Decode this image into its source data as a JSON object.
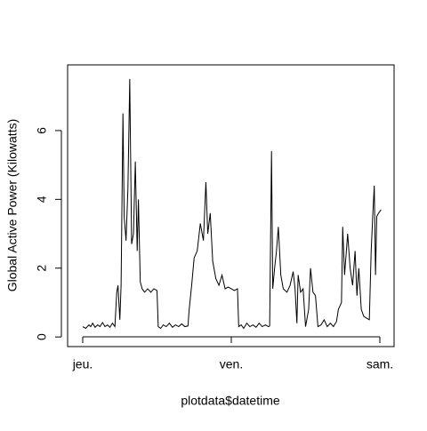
{
  "chart_data": {
    "type": "line",
    "x_label": "plotdata$datetime",
    "y_label": "Global Active Power (Kilowatts)",
    "xlim": [
      -2.44,
      50.3
    ],
    "ylim": [
      -0.28,
      7.91
    ],
    "xticks": [
      {
        "value": 0,
        "label": "jeu."
      },
      {
        "value": 24,
        "label": "ven."
      },
      {
        "value": 48,
        "label": "sam."
      }
    ],
    "yticks": [
      0,
      2,
      4,
      6
    ],
    "color": "#000000",
    "x": [
      0,
      0.5,
      1,
      1.3,
      1.6,
      2,
      2.4,
      2.8,
      3.2,
      3.6,
      4,
      4.4,
      4.8,
      5.2,
      5.5,
      5.7,
      6,
      6.2,
      6.5,
      6.7,
      7,
      7.3,
      7.6,
      7.9,
      8.2,
      8.5,
      8.8,
      9,
      9.3,
      9.6,
      10,
      10.5,
      11,
      11.5,
      12,
      12.2,
      12.6,
      13,
      13.5,
      14,
      14.5,
      15,
      15.5,
      16,
      16.5,
      17,
      17.2,
      17.6,
      18,
      18.5,
      19,
      19.5,
      19.9,
      20.2,
      20.6,
      21,
      21.5,
      22,
      22.5,
      23,
      23.5,
      24,
      24.5,
      25,
      25.2,
      25.6,
      26,
      26.5,
      27,
      27.5,
      28,
      28.5,
      29,
      29.5,
      30,
      30.2,
      30.5,
      30.7,
      31,
      31.3,
      31.6,
      32,
      32.4,
      33,
      33.5,
      34,
      34.3,
      34.6,
      34.8,
      35.2,
      35.6,
      36,
      36.5,
      36.8,
      37.2,
      37.6,
      38,
      38.5,
      39,
      39.5,
      40,
      40.5,
      41,
      41.3,
      41.8,
      42,
      42.3,
      42.8,
      43.2,
      43.6,
      44,
      44.3,
      44.6,
      45,
      45.4,
      45.8,
      46.3,
      46.6,
      46.9,
      47.1,
      47.3,
      47.5,
      47.8,
      48.2
    ],
    "values": [
      0.3,
      0.25,
      0.35,
      0.3,
      0.4,
      0.28,
      0.35,
      0.3,
      0.42,
      0.3,
      0.35,
      0.28,
      0.4,
      0.3,
      1.3,
      1.5,
      0.5,
      1.5,
      6.5,
      3.5,
      2.8,
      4.3,
      7.5,
      2.7,
      3.0,
      5.1,
      2.5,
      4.0,
      1.6,
      1.4,
      1.3,
      1.4,
      1.3,
      1.4,
      1.35,
      0.3,
      0.25,
      0.35,
      0.3,
      0.4,
      0.28,
      0.35,
      0.3,
      0.38,
      0.3,
      0.32,
      0.8,
      1.5,
      2.3,
      2.5,
      3.3,
      2.8,
      4.5,
      3.0,
      3.6,
      2.2,
      1.7,
      1.5,
      1.8,
      1.4,
      1.45,
      1.4,
      1.35,
      1.4,
      0.3,
      0.35,
      0.25,
      0.4,
      0.3,
      0.35,
      0.28,
      0.4,
      0.3,
      0.35,
      0.3,
      0.32,
      5.4,
      1.4,
      2.0,
      2.5,
      3.2,
      1.8,
      1.4,
      1.3,
      1.5,
      1.9,
      1.4,
      0.4,
      1.8,
      1.3,
      1.4,
      0.3,
      0.8,
      2.0,
      1.3,
      1.2,
      0.3,
      0.35,
      0.5,
      0.3,
      0.4,
      0.3,
      0.45,
      0.8,
      1.0,
      3.2,
      1.8,
      3.0,
      2.0,
      1.5,
      2.5,
      1.2,
      2.0,
      0.8,
      0.6,
      0.55,
      0.5,
      2.5,
      3.7,
      4.4,
      1.8,
      3.5,
      3.6,
      3.7
    ]
  }
}
